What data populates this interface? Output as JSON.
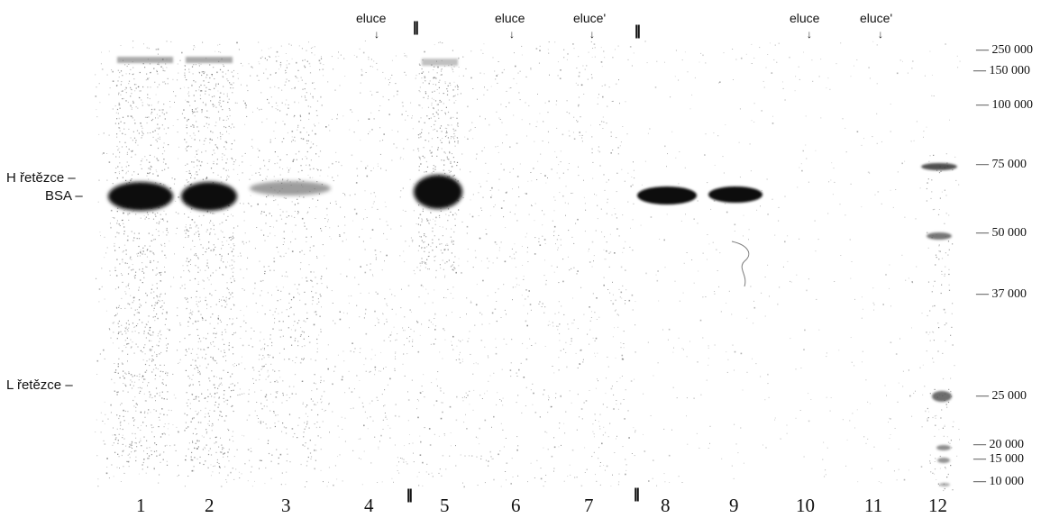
{
  "header_labels": {
    "eluce_a": "eluce",
    "eluce_b": "eluce",
    "eluce_c": "eluce'",
    "eluce_d": "eluce",
    "eluce_e": "eluce'"
  },
  "side_labels": {
    "h_chain": "H řetězce",
    "bsa": "BSA",
    "l_chain": "L řetězce"
  },
  "molecular_weights": [
    "250 000",
    "150 000",
    "100 000",
    "75 000",
    "50 000",
    "37 000",
    "25 000",
    "20 000",
    "15 000",
    "10 000"
  ],
  "lane_numbers": [
    "1",
    "2",
    "3",
    "4",
    "5",
    "6",
    "7",
    "8",
    "9",
    "10",
    "11",
    "12"
  ],
  "colors": {
    "band": "#111111",
    "ink": "#111111",
    "background": "#ffffff"
  }
}
